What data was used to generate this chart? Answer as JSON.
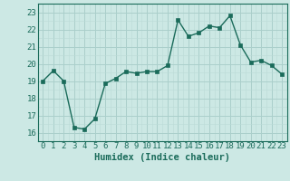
{
  "x": [
    0,
    1,
    2,
    3,
    4,
    5,
    6,
    7,
    8,
    9,
    10,
    11,
    12,
    13,
    14,
    15,
    16,
    17,
    18,
    19,
    20,
    21,
    22,
    23
  ],
  "y": [
    19.0,
    19.6,
    19.0,
    16.3,
    16.2,
    16.8,
    18.85,
    19.15,
    19.55,
    19.45,
    19.55,
    19.55,
    19.9,
    22.55,
    21.6,
    21.8,
    22.2,
    22.1,
    22.8,
    21.1,
    20.1,
    20.2,
    19.9,
    19.4
  ],
  "line_color": "#1a6b5a",
  "bg_color": "#cce8e4",
  "grid_color_major": "#aacfcb",
  "grid_color_minor": "#bbdbd7",
  "xlabel": "Humidex (Indice chaleur)",
  "ylim": [
    15.5,
    23.5
  ],
  "xlim": [
    -0.5,
    23.5
  ],
  "yticks": [
    16,
    17,
    18,
    19,
    20,
    21,
    22,
    23
  ],
  "xticks": [
    0,
    1,
    2,
    3,
    4,
    5,
    6,
    7,
    8,
    9,
    10,
    11,
    12,
    13,
    14,
    15,
    16,
    17,
    18,
    19,
    20,
    21,
    22,
    23
  ],
  "marker_size": 2.2,
  "line_width": 1.0,
  "font_color": "#1a6b5a",
  "font_size": 6.5,
  "xlabel_fontsize": 7.5
}
